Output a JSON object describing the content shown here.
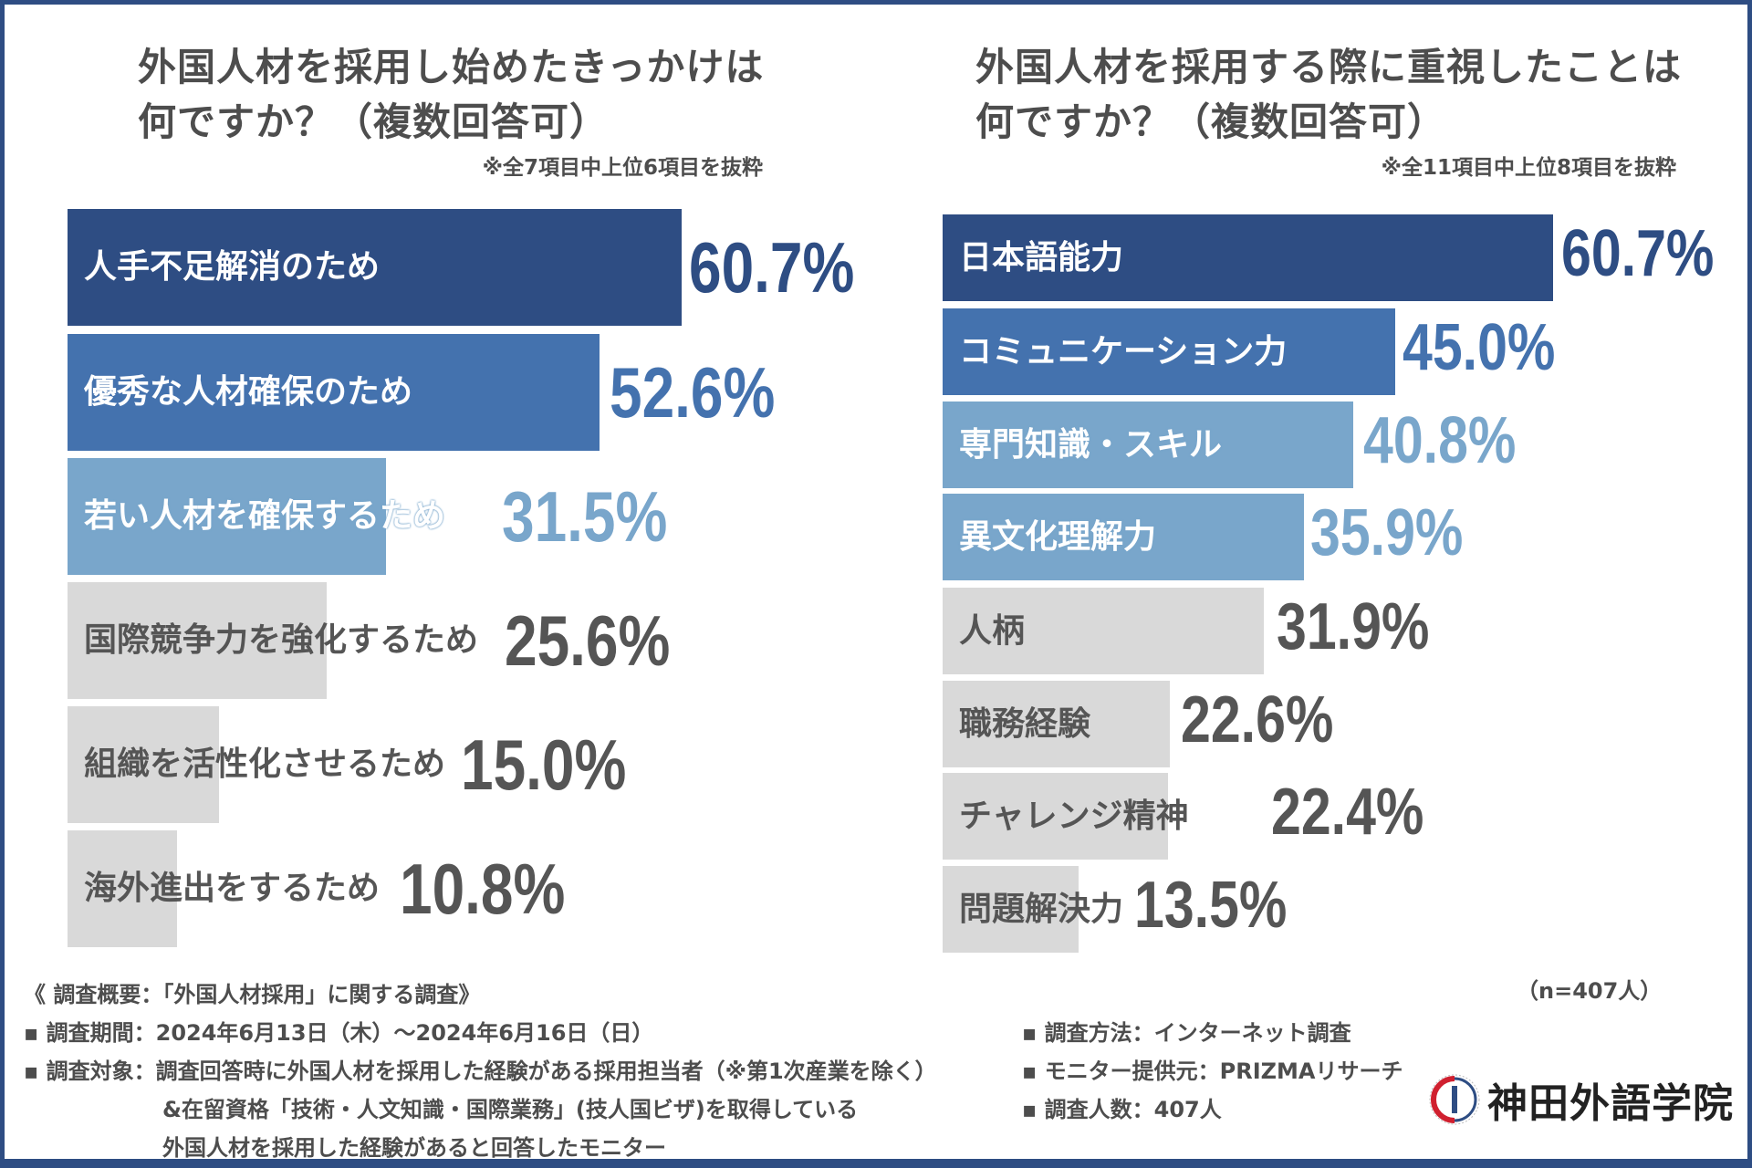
{
  "colors": {
    "navy": "#2e4d83",
    "medium": "#4472ae",
    "light": "#79a6cb",
    "gray": "#d9d9d9",
    "text_gray": "#555555"
  },
  "chart_data": [
    {
      "type": "bar",
      "orientation": "horizontal",
      "title": "外国人材を採用し始めたきっかけは何ですか？（複数回答可）",
      "title_line1": "外国人材を採用し始めたきっかけは",
      "title_line2": "何ですか？（複数回答可）",
      "note": "※全7項目中上位6項目を抜粋",
      "categories": [
        "人手不足解消のため",
        "優秀な人材確保のため",
        "若い人材を確保するため",
        "国際競争力を強化するため",
        "組織を活性化させるため",
        "海外進出をするため"
      ],
      "values": [
        60.7,
        52.6,
        31.5,
        25.6,
        15.0,
        10.8
      ],
      "value_labels": [
        "60.7%",
        "52.6%",
        "31.5%",
        "25.6%",
        "15.0%",
        "10.8%"
      ],
      "bar_colors": [
        "#2e4d83",
        "#4472ae",
        "#79a6cb",
        "#d9d9d9",
        "#d9d9d9",
        "#d9d9d9"
      ],
      "unit": "%"
    },
    {
      "type": "bar",
      "orientation": "horizontal",
      "title": "外国人材を採用する際に重視したことは何ですか？（複数回答可）",
      "title_line1": "外国人材を採用する際に重視したことは",
      "title_line2": "何ですか？（複数回答可）",
      "note": "※全11項目中上位8項目を抜粋",
      "categories": [
        "日本語能力",
        "コミュニケーション力",
        "専門知識・スキル",
        "異文化理解力",
        "人柄",
        "職務経験",
        "チャレンジ精神",
        "問題解決力"
      ],
      "values": [
        60.7,
        45.0,
        40.8,
        35.9,
        31.9,
        22.6,
        22.4,
        13.5
      ],
      "value_labels": [
        "60.7%",
        "45.0%",
        "40.8%",
        "35.9%",
        "31.9%",
        "22.6%",
        "22.4%",
        "13.5%"
      ],
      "bar_colors": [
        "#2e4d83",
        "#4472ae",
        "#79a6cb",
        "#79a6cb",
        "#d9d9d9",
        "#d9d9d9",
        "#d9d9d9",
        "#d9d9d9"
      ],
      "unit": "%"
    }
  ],
  "footer": {
    "summary": "《 調査概要：「外国人材採用」に関する調査》",
    "n": "（n=407人）",
    "period": "▪ 調査期間：2024年6月13日（木）～2024年6月16日（日）",
    "target1": "▪ 調査対象：調査回答時に外国人材を採用した経験がある採用担当者（※第1次産業を除く）",
    "target2": "&在留資格「技術・人文知識・国際業務」(技人国ビザ)を取得している",
    "target3": "外国人材を採用した経験があると回答したモニター",
    "method": "▪ 調査方法：インターネット調査",
    "provider": "▪ モニター提供元：PRIZMAリサーチ",
    "count": "▪ 調査人数：407人"
  },
  "logo": {
    "text": "神田外語学院"
  }
}
